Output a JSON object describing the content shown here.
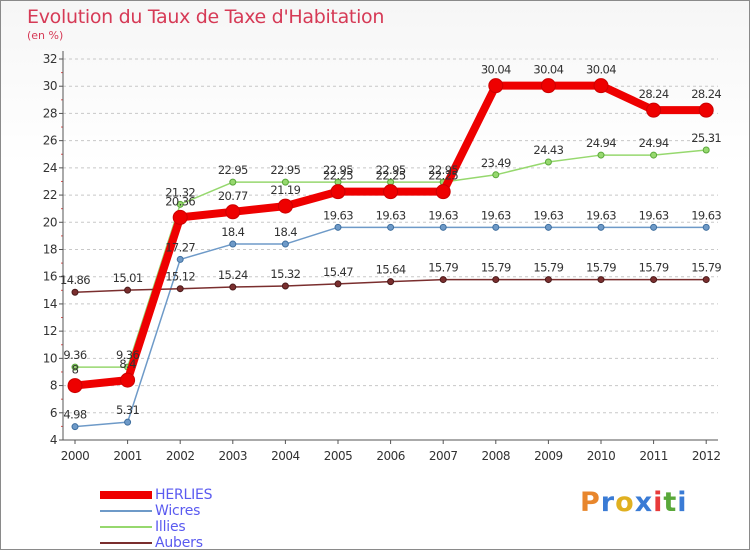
{
  "title": "Evolution du Taux de Taxe d'Habitation",
  "subtitle": "(en %)",
  "logo": {
    "text": "Proxiti",
    "colors": [
      "#e8862c",
      "#3a7bd5",
      "#e0b020",
      "#3a7bd5",
      "#e83a3a",
      "#5aa83a",
      "#3a7bd5"
    ]
  },
  "chart_data": {
    "type": "line",
    "x": [
      "2000",
      "2001",
      "2002",
      "2003",
      "2004",
      "2005",
      "2006",
      "2007",
      "2008",
      "2009",
      "2010",
      "2011",
      "2012"
    ],
    "ylim": [
      4,
      32
    ],
    "yticks": [
      "4",
      "6",
      "8",
      "10",
      "12",
      "14",
      "16",
      "18",
      "20",
      "22",
      "24",
      "26",
      "28",
      "30",
      "32"
    ],
    "grid": "horizontal dashed",
    "series": [
      {
        "name": "HERLIES",
        "color": "#ee0000",
        "width": 8,
        "marker": 7,
        "values": [
          8,
          8.4,
          20.36,
          20.77,
          21.19,
          22.25,
          22.25,
          22.25,
          30.04,
          30.04,
          30.04,
          28.24,
          28.24
        ],
        "labels": [
          "8",
          "8.4",
          "20.36",
          "20.77",
          "21.19",
          "22.25",
          "22.25",
          "22.25",
          "30.04",
          "30.04",
          "30.04",
          "28.24",
          "28.24"
        ]
      },
      {
        "name": "Wicres",
        "color": "#6e9ac8",
        "width": 1.5,
        "marker": 3,
        "values": [
          4.98,
          5.31,
          17.27,
          18.4,
          18.4,
          19.63,
          19.63,
          19.63,
          19.63,
          19.63,
          19.63,
          19.63,
          19.63
        ],
        "labels": [
          "4.98",
          "5.31",
          "17.27",
          "18.4",
          "18.4",
          "19.63",
          "19.63",
          "19.63",
          "19.63",
          "19.63",
          "19.63",
          "19.63",
          "19.63"
        ]
      },
      {
        "name": "Illies",
        "color": "#96d86e",
        "width": 1.5,
        "marker": 3,
        "values": [
          9.36,
          9.36,
          21.32,
          22.95,
          22.95,
          22.95,
          22.95,
          22.95,
          23.49,
          24.43,
          24.94,
          24.94,
          25.31
        ],
        "labels": [
          "9.36",
          "9.36",
          "21.32",
          "22.95",
          "22.95",
          "22.95",
          "22.95",
          "22.95",
          "23.49",
          "24.43",
          "24.94",
          "24.94",
          "25.31"
        ]
      },
      {
        "name": "Aubers",
        "color": "#7a2e2e",
        "width": 1.5,
        "marker": 3,
        "values": [
          14.86,
          15.01,
          15.12,
          15.24,
          15.32,
          15.47,
          15.64,
          15.79,
          15.79,
          15.79,
          15.79,
          15.79,
          15.79
        ],
        "labels": [
          "14.86",
          "15.01",
          "15.12",
          "15.24",
          "15.32",
          "15.47",
          "15.64",
          "15.79",
          "15.79",
          "15.79",
          "15.79",
          "15.79",
          "15.79"
        ]
      }
    ]
  }
}
